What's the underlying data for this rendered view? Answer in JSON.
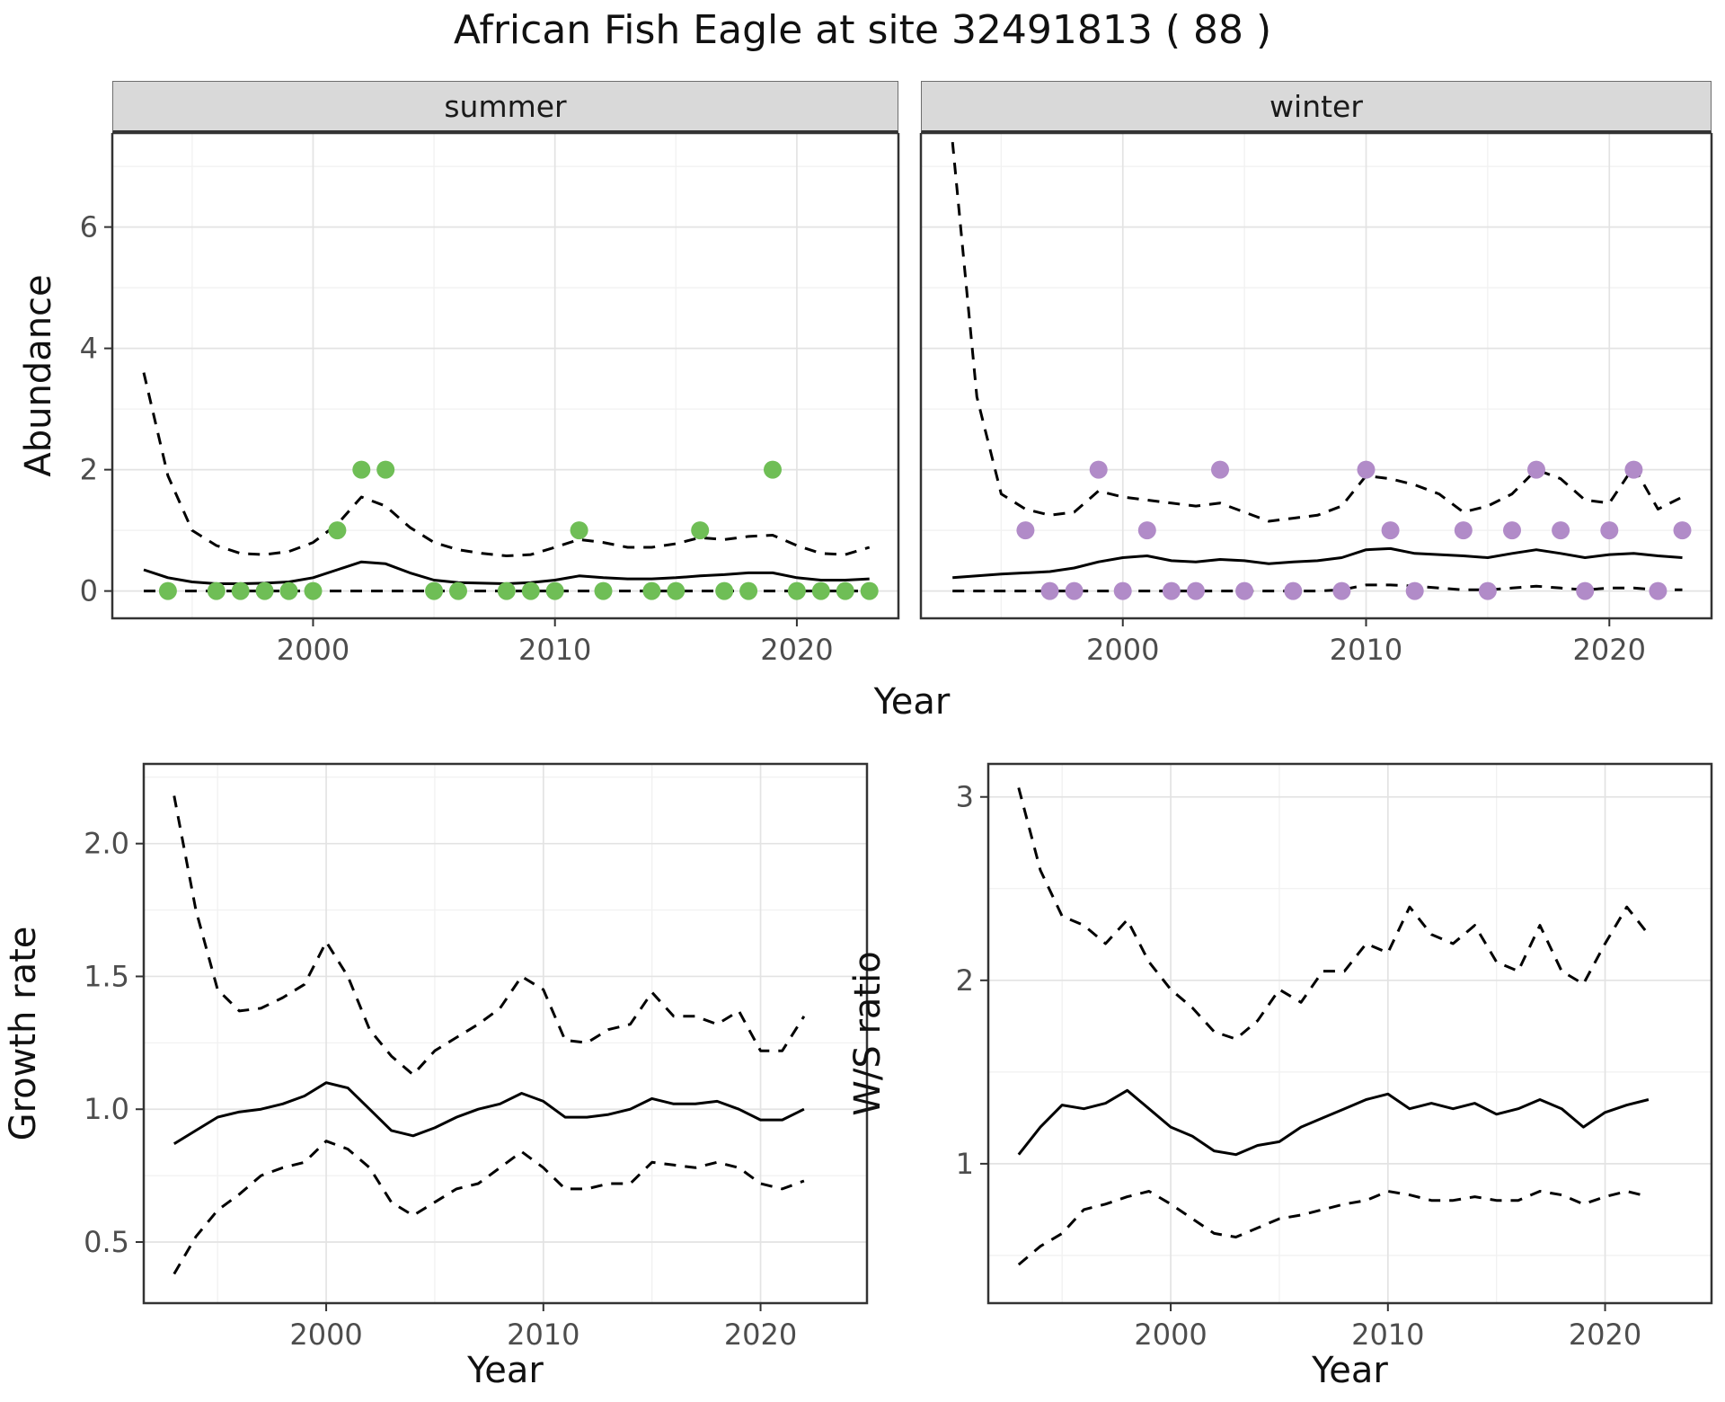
{
  "title": "African Fish Eagle at site 32491813 ( 88 )",
  "colors": {
    "summer_point": "#6FBE56",
    "winter_point": "#B18BC8",
    "line": "#000000",
    "grid_major": "#E3E3E3",
    "grid_minor": "#F1F1F1",
    "strip_bg": "#D9D9D9",
    "panel_border": "#333333",
    "tick_text": "#4D4D4D",
    "text": "#111111"
  },
  "facets": {
    "summer_label": "summer",
    "winter_label": "winter"
  },
  "axis_labels": {
    "abundance": "Abundance",
    "year_top": "Year",
    "growth": "Growth rate",
    "year_bottom_left": "Year",
    "ws": "W/S ratio",
    "year_bottom_right": "Year"
  },
  "chart_data": [
    {
      "id": "summer-abundance",
      "type": "line",
      "title": "summer",
      "xlabel": "Year",
      "ylabel": "Abundance",
      "xlim": [
        1991.7,
        2024.2
      ],
      "ylim": [
        -0.45,
        7.55
      ],
      "xticks": [
        2000,
        2010,
        2020
      ],
      "xtick_labels": [
        "2000",
        "2010",
        "2020"
      ],
      "yticks": [
        0,
        2,
        4,
        6
      ],
      "ytick_labels": [
        "0",
        "2",
        "4",
        "6"
      ],
      "show_yticklabels": true,
      "grid": true,
      "x": [
        1993,
        1994,
        1995,
        1996,
        1997,
        1998,
        1999,
        2000,
        2001,
        2002,
        2003,
        2004,
        2005,
        2006,
        2007,
        2008,
        2009,
        2010,
        2011,
        2012,
        2013,
        2014,
        2015,
        2016,
        2017,
        2018,
        2019,
        2020,
        2021,
        2022,
        2023
      ],
      "series": [
        {
          "name": "mean",
          "style": "solid",
          "values": [
            0.35,
            0.22,
            0.15,
            0.12,
            0.12,
            0.13,
            0.15,
            0.22,
            0.35,
            0.48,
            0.45,
            0.3,
            0.18,
            0.14,
            0.13,
            0.12,
            0.14,
            0.18,
            0.25,
            0.22,
            0.2,
            0.2,
            0.22,
            0.25,
            0.27,
            0.3,
            0.3,
            0.22,
            0.18,
            0.18,
            0.2
          ]
        },
        {
          "name": "upper_ci",
          "style": "dashed",
          "values": [
            3.6,
            1.9,
            1.0,
            0.75,
            0.62,
            0.6,
            0.65,
            0.8,
            1.1,
            1.55,
            1.4,
            1.05,
            0.8,
            0.68,
            0.62,
            0.58,
            0.6,
            0.72,
            0.85,
            0.8,
            0.72,
            0.72,
            0.78,
            0.88,
            0.85,
            0.9,
            0.92,
            0.75,
            0.62,
            0.6,
            0.72
          ]
        },
        {
          "name": "lower_ci",
          "style": "dashed",
          "values": [
            0,
            0,
            0,
            0,
            0,
            0,
            0,
            0,
            0,
            0,
            0,
            0,
            0,
            0,
            0,
            0,
            0,
            0,
            0,
            0,
            0,
            0,
            0,
            0,
            0,
            0,
            0,
            0,
            0,
            0,
            0
          ]
        }
      ],
      "points": {
        "name": "observed_counts",
        "color_key": "summer_point",
        "x": [
          1994,
          1996,
          1997,
          1998,
          1999,
          2000,
          2001,
          2002,
          2003,
          2005,
          2006,
          2008,
          2009,
          2010,
          2011,
          2012,
          2014,
          2015,
          2016,
          2017,
          2018,
          2019,
          2020,
          2021,
          2022,
          2023
        ],
        "y": [
          0,
          0,
          0,
          0,
          0,
          0,
          1,
          2,
          2,
          0,
          0,
          0,
          0,
          0,
          1,
          0,
          0,
          0,
          1,
          0,
          0,
          2,
          0,
          0,
          0,
          0
        ]
      }
    },
    {
      "id": "winter-abundance",
      "type": "line",
      "title": "winter",
      "xlabel": "Year",
      "ylabel": "Abundance",
      "xlim": [
        1991.7,
        2024.2
      ],
      "ylim": [
        -0.45,
        7.55
      ],
      "xticks": [
        2000,
        2010,
        2020
      ],
      "xtick_labels": [
        "2000",
        "2010",
        "2020"
      ],
      "yticks": [
        0,
        2,
        4,
        6
      ],
      "ytick_labels": [
        "0",
        "2",
        "4",
        "6"
      ],
      "show_yticklabels": false,
      "grid": true,
      "x": [
        1993,
        1994,
        1995,
        1996,
        1997,
        1998,
        1999,
        2000,
        2001,
        2002,
        2003,
        2004,
        2005,
        2006,
        2007,
        2008,
        2009,
        2010,
        2011,
        2012,
        2013,
        2014,
        2015,
        2016,
        2017,
        2018,
        2019,
        2020,
        2021,
        2022,
        2023
      ],
      "series": [
        {
          "name": "mean",
          "style": "solid",
          "values": [
            0.22,
            0.25,
            0.28,
            0.3,
            0.32,
            0.38,
            0.48,
            0.55,
            0.58,
            0.5,
            0.48,
            0.52,
            0.5,
            0.45,
            0.48,
            0.5,
            0.55,
            0.68,
            0.7,
            0.62,
            0.6,
            0.58,
            0.55,
            0.62,
            0.68,
            0.62,
            0.55,
            0.6,
            0.62,
            0.58,
            0.55
          ]
        },
        {
          "name": "upper_ci",
          "style": "dashed",
          "values": [
            7.4,
            3.2,
            1.6,
            1.35,
            1.25,
            1.3,
            1.65,
            1.55,
            1.5,
            1.45,
            1.4,
            1.45,
            1.3,
            1.15,
            1.2,
            1.25,
            1.4,
            1.9,
            1.85,
            1.75,
            1.6,
            1.3,
            1.4,
            1.6,
            2.0,
            1.85,
            1.5,
            1.45,
            2.05,
            1.35,
            1.55
          ]
        },
        {
          "name": "lower_ci",
          "style": "dashed",
          "values": [
            0,
            0,
            0,
            0,
            0,
            0,
            0,
            0,
            0,
            0,
            0,
            0,
            0,
            0,
            0,
            0,
            0.02,
            0.1,
            0.1,
            0.08,
            0.05,
            0.02,
            0.02,
            0.05,
            0.08,
            0.05,
            0.02,
            0.05,
            0.05,
            0.02,
            0.02
          ]
        }
      ],
      "points": {
        "name": "observed_counts",
        "color_key": "winter_point",
        "x": [
          1996,
          1997,
          1998,
          1999,
          2000,
          2001,
          2002,
          2003,
          2004,
          2005,
          2007,
          2009,
          2010,
          2011,
          2012,
          2014,
          2015,
          2016,
          2017,
          2018,
          2019,
          2020,
          2021,
          2022,
          2023
        ],
        "y": [
          1,
          0,
          0,
          2,
          0,
          1,
          0,
          0,
          2,
          0,
          0,
          0,
          2,
          1,
          0,
          1,
          0,
          1,
          2,
          1,
          0,
          1,
          2,
          0,
          1
        ]
      }
    },
    {
      "id": "growth-rate",
      "type": "line",
      "title": "",
      "xlabel": "Year",
      "ylabel": "Growth rate",
      "xlim": [
        1991.6,
        2024.9
      ],
      "ylim": [
        0.27,
        2.3
      ],
      "xticks": [
        2000,
        2010,
        2020
      ],
      "xtick_labels": [
        "2000",
        "2010",
        "2020"
      ],
      "yticks": [
        0.5,
        1.0,
        1.5,
        2.0
      ],
      "ytick_labels": [
        "0.5",
        "1.0",
        "1.5",
        "2.0"
      ],
      "show_yticklabels": true,
      "grid": true,
      "x": [
        1993,
        1994,
        1995,
        1996,
        1997,
        1998,
        1999,
        2000,
        2001,
        2002,
        2003,
        2004,
        2005,
        2006,
        2007,
        2008,
        2009,
        2010,
        2011,
        2012,
        2013,
        2014,
        2015,
        2016,
        2017,
        2018,
        2019,
        2020,
        2021,
        2022
      ],
      "series": [
        {
          "name": "mean",
          "style": "solid",
          "values": [
            0.87,
            0.92,
            0.97,
            0.99,
            1.0,
            1.02,
            1.05,
            1.1,
            1.08,
            1.0,
            0.92,
            0.9,
            0.93,
            0.97,
            1.0,
            1.02,
            1.06,
            1.03,
            0.97,
            0.97,
            0.98,
            1.0,
            1.04,
            1.02,
            1.02,
            1.03,
            1.0,
            0.96,
            0.96,
            1.0
          ]
        },
        {
          "name": "upper_ci",
          "style": "dashed",
          "values": [
            2.18,
            1.75,
            1.45,
            1.37,
            1.38,
            1.42,
            1.47,
            1.63,
            1.5,
            1.3,
            1.2,
            1.13,
            1.22,
            1.27,
            1.32,
            1.38,
            1.5,
            1.45,
            1.26,
            1.25,
            1.3,
            1.32,
            1.44,
            1.35,
            1.35,
            1.32,
            1.37,
            1.22,
            1.22,
            1.35
          ]
        },
        {
          "name": "lower_ci",
          "style": "dashed",
          "values": [
            0.38,
            0.52,
            0.62,
            0.68,
            0.75,
            0.78,
            0.8,
            0.88,
            0.85,
            0.78,
            0.65,
            0.6,
            0.65,
            0.7,
            0.72,
            0.78,
            0.84,
            0.78,
            0.7,
            0.7,
            0.72,
            0.72,
            0.8,
            0.79,
            0.78,
            0.8,
            0.78,
            0.72,
            0.7,
            0.73
          ]
        }
      ]
    },
    {
      "id": "ws-ratio",
      "type": "line",
      "title": "",
      "xlabel": "Year",
      "ylabel": "W/S ratio",
      "xlim": [
        1991.6,
        2024.9
      ],
      "ylim": [
        0.24,
        3.18
      ],
      "xticks": [
        2000,
        2010,
        2020
      ],
      "xtick_labels": [
        "2000",
        "2010",
        "2020"
      ],
      "yticks": [
        1,
        2,
        3
      ],
      "ytick_labels": [
        "1",
        "2",
        "3"
      ],
      "show_yticklabels": true,
      "grid": true,
      "x": [
        1993,
        1994,
        1995,
        1996,
        1997,
        1998,
        1999,
        2000,
        2001,
        2002,
        2003,
        2004,
        2005,
        2006,
        2007,
        2008,
        2009,
        2010,
        2011,
        2012,
        2013,
        2014,
        2015,
        2016,
        2017,
        2018,
        2019,
        2020,
        2021,
        2022
      ],
      "series": [
        {
          "name": "mean",
          "style": "solid",
          "values": [
            1.05,
            1.2,
            1.32,
            1.3,
            1.33,
            1.4,
            1.3,
            1.2,
            1.15,
            1.07,
            1.05,
            1.1,
            1.12,
            1.2,
            1.25,
            1.3,
            1.35,
            1.38,
            1.3,
            1.33,
            1.3,
            1.33,
            1.27,
            1.3,
            1.35,
            1.3,
            1.2,
            1.28,
            1.32,
            1.35
          ]
        },
        {
          "name": "upper_ci",
          "style": "dashed",
          "values": [
            3.05,
            2.6,
            2.35,
            2.3,
            2.2,
            2.33,
            2.1,
            1.95,
            1.85,
            1.72,
            1.68,
            1.78,
            1.95,
            1.88,
            2.05,
            2.05,
            2.2,
            2.15,
            2.4,
            2.25,
            2.2,
            2.3,
            2.1,
            2.05,
            2.3,
            2.05,
            1.98,
            2.2,
            2.4,
            2.25
          ]
        },
        {
          "name": "lower_ci",
          "style": "dashed",
          "values": [
            0.45,
            0.55,
            0.62,
            0.75,
            0.78,
            0.82,
            0.85,
            0.78,
            0.7,
            0.62,
            0.6,
            0.65,
            0.7,
            0.72,
            0.75,
            0.78,
            0.8,
            0.85,
            0.83,
            0.8,
            0.8,
            0.82,
            0.8,
            0.8,
            0.85,
            0.83,
            0.78,
            0.82,
            0.85,
            0.82
          ]
        }
      ]
    }
  ]
}
